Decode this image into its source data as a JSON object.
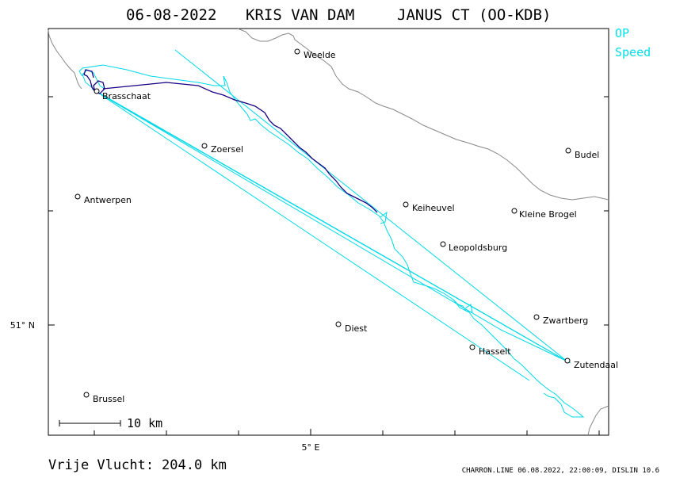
{
  "header": {
    "date": "06-08-2022",
    "pilot": "KRIS VAN DAM",
    "glider": "JANUS CT (OO-KDB)"
  },
  "legend": {
    "op_label": "OP",
    "speed_label": "Speed",
    "op_color": "#00e0a0",
    "speed_color": "#00e0e8"
  },
  "colors": {
    "track_dark": "#1a0080",
    "track_light": "#00d8e8",
    "border": "#888888"
  },
  "places": [
    {
      "name": "Weelde"
    },
    {
      "name": "Brasschaat"
    },
    {
      "name": "Zoersel"
    },
    {
      "name": "Budel"
    },
    {
      "name": "Antwerpen"
    },
    {
      "name": "Keiheuvel"
    },
    {
      "name": "Kleine Brogel"
    },
    {
      "name": "Leopoldsburg"
    },
    {
      "name": "Zwartberg"
    },
    {
      "name": "Diest"
    },
    {
      "name": "Hasselt"
    },
    {
      "name": "Zutendaal"
    },
    {
      "name": "Brussel"
    }
  ],
  "axes": {
    "lat_label": "51° N",
    "lon_label": "5° E"
  },
  "scale": {
    "label": "10 km"
  },
  "distance": {
    "label": "Vrije Vlucht:",
    "value": "204.0 km"
  },
  "footer": {
    "credit": "CHARRON.LINE 06.08.2022, 22:00:09, DISLIN 10.6"
  }
}
